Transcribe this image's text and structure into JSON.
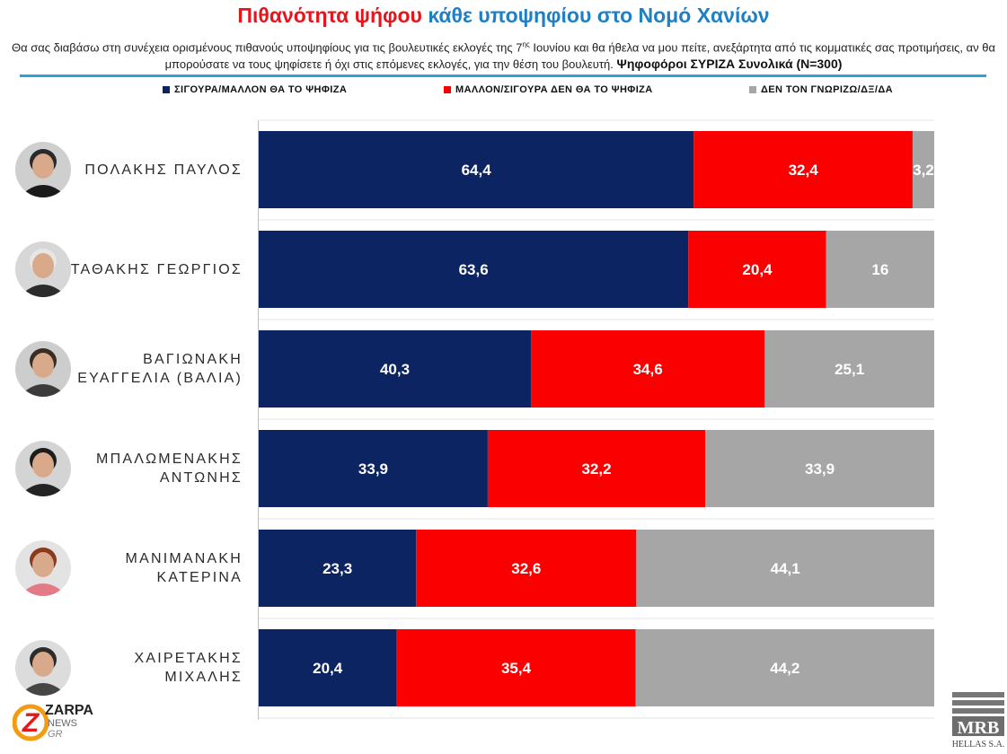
{
  "title": {
    "part1": "Πιθανότητα ψήφου",
    "part2": "κάθε υποψηφίου στο Νομό Χανίων"
  },
  "subtitle": {
    "text_before_sup": "Θα σας διαβάσω στη συνέχεια ορισμένους πιθανούς υποψηφίους για τις βουλευτικές εκλογές της 7",
    "sup": "ης",
    "text_after_sup": " Ιουνίου και θα ήθελα να μου πείτε, ανεξάρτητα από τις κομματικές σας προτιμήσεις, αν θα μπορούσατε να τους ψηφίσετε ή όχι στις επόμενες εκλογές, για την θέση του βουλευτή.",
    "bold": "Ψηφοφόροι ΣΥΡΙΖΑ Συνολικά (Ν=300)"
  },
  "colors": {
    "navy": "#0d2462",
    "red": "#fb0000",
    "gray": "#a6a6a6",
    "title_red": "#e8141b",
    "title_blue": "#1f7fc4",
    "rule": "#2aa4d5"
  },
  "chart_data": {
    "type": "bar",
    "orientation": "horizontal",
    "stacked": true,
    "xlim": [
      0,
      100
    ],
    "legend_position": "top",
    "categories": [
      [
        "ΠΟΛΑΚΗΣ ΠΑΥΛΟΣ"
      ],
      [
        "ΣΤΑΘΑΚΗΣ ΓΕΩΡΓΙΟΣ"
      ],
      [
        "ΒΑΓΙΩΝΑΚΗ",
        "ΕΥΑΓΓΕΛΙΑ (ΒΑΛΙΑ)"
      ],
      [
        "ΜΠΑΛΩΜΕΝΑΚΗΣ",
        "ΑΝΤΩΝΗΣ"
      ],
      [
        "ΜΑΝΙΜΑΝΑΚΗ",
        "ΚΑΤΕΡΙΝΑ"
      ],
      [
        "ΧΑΙΡΕΤΑΚΗΣ",
        "ΜΙΧΑΛΗΣ"
      ]
    ],
    "series": [
      {
        "name": "ΣΙΓΟΥΡΑ/ΜΑΛΛΟΝ ΘΑ ΤΟ ΨΗΦΙΖΑ",
        "color": "#0d2462",
        "values": [
          64.4,
          63.6,
          40.3,
          33.9,
          23.3,
          20.4
        ],
        "labels": [
          "64,4",
          "63,6",
          "40,3",
          "33,9",
          "23,3",
          "20,4"
        ]
      },
      {
        "name": "ΜΑΛΛΟΝ/ΣΙΓΟΥΡΑ ΔΕΝ ΘΑ ΤΟ ΨΗΦΙΖΑ",
        "color": "#fb0000",
        "values": [
          32.4,
          20.4,
          34.6,
          32.2,
          32.6,
          35.4
        ],
        "labels": [
          "32,4",
          "20,4",
          "34,6",
          "32,2",
          "32,6",
          "35,4"
        ]
      },
      {
        "name": "ΔΕΝ ΤΟΝ ΓΝΩΡΙΖΩ/ΔΞ/ΔΑ",
        "color": "#a6a6a6",
        "values": [
          3.2,
          16,
          25.1,
          33.9,
          44.1,
          44.2
        ],
        "labels": [
          "3,2",
          "16",
          "25,1",
          "33,9",
          "44,1",
          "44,2"
        ]
      }
    ]
  },
  "logos": {
    "zarpa_main": "ZARPA",
    "zarpa_news": "NEWS",
    "zarpa_gr": "GR",
    "zarpa_letter": "Z",
    "mrb_main": "MRB",
    "mrb_sub": "HELLAS S.A."
  }
}
